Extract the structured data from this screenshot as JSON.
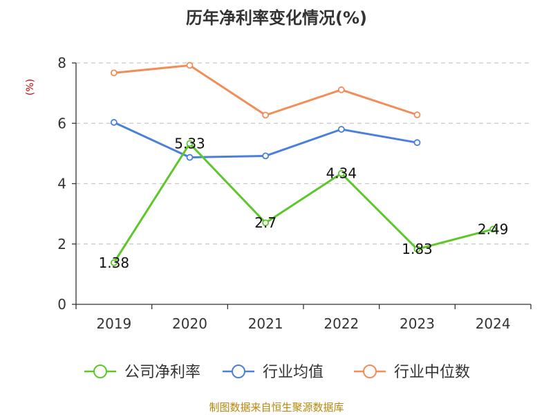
{
  "chart_data": {
    "type": "line",
    "title": "历年净利率变化情况(%)",
    "ylabel": "(%)",
    "xlabel": "",
    "categories": [
      "2019",
      "2020",
      "2021",
      "2022",
      "2023",
      "2024"
    ],
    "ylim": [
      0,
      8
    ],
    "yticks": [
      0,
      2,
      4,
      6,
      8
    ],
    "grid": true,
    "legend_position": "bottom",
    "series": [
      {
        "name": "公司净利率",
        "color": "#5cc72b",
        "values": [
          1.38,
          5.33,
          2.7,
          4.34,
          1.83,
          2.49
        ],
        "labels": [
          "1.38",
          "5.33",
          "2.7",
          "4.34",
          "1.83",
          "2.49"
        ]
      },
      {
        "name": "行业均值",
        "color": "#4a7fdb",
        "values": [
          6.03,
          4.87,
          4.92,
          5.8,
          5.36,
          null
        ]
      },
      {
        "name": "行业中位数",
        "color": "#f28d58",
        "values": [
          7.67,
          7.92,
          6.27,
          7.11,
          6.28,
          null
        ]
      }
    ]
  },
  "source": "制图数据来自恒生聚源数据库"
}
